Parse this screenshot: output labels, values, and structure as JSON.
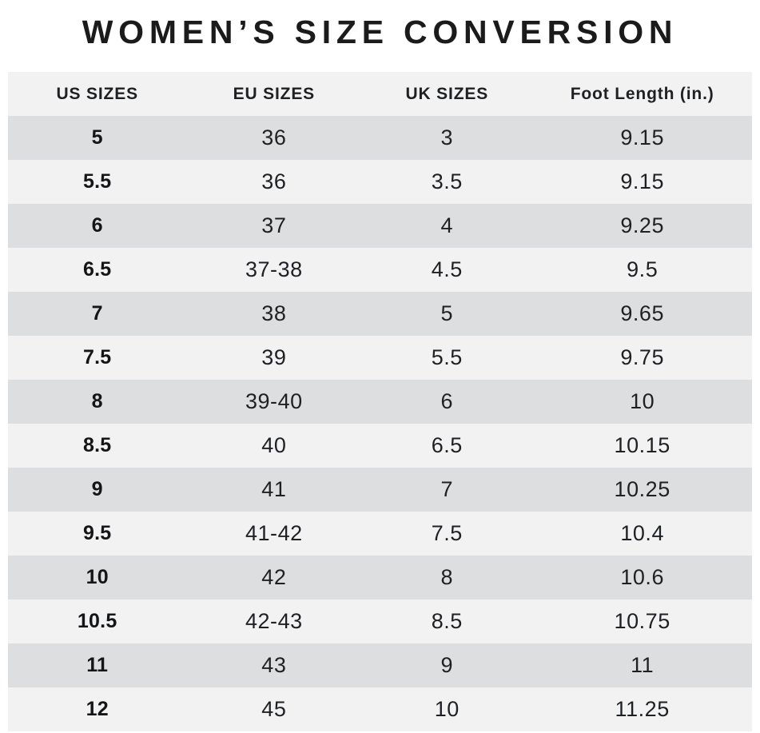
{
  "title": "WOMEN’S SIZE CONVERSION",
  "table": {
    "headers": [
      "US SIZES",
      "EU SIZES",
      "UK SIZES",
      "Foot Length (in.)"
    ],
    "rows": [
      {
        "us": "5",
        "eu": "36",
        "uk": "3",
        "foot": "9.15"
      },
      {
        "us": "5.5",
        "eu": "36",
        "uk": "3.5",
        "foot": "9.15"
      },
      {
        "us": "6",
        "eu": "37",
        "uk": "4",
        "foot": "9.25"
      },
      {
        "us": "6.5",
        "eu": "37-38",
        "uk": "4.5",
        "foot": "9.5"
      },
      {
        "us": "7",
        "eu": "38",
        "uk": "5",
        "foot": "9.65"
      },
      {
        "us": "7.5",
        "eu": "39",
        "uk": "5.5",
        "foot": "9.75"
      },
      {
        "us": "8",
        "eu": "39-40",
        "uk": "6",
        "foot": "10"
      },
      {
        "us": "8.5",
        "eu": "40",
        "uk": "6.5",
        "foot": "10.15"
      },
      {
        "us": "9",
        "eu": "41",
        "uk": "7",
        "foot": "10.25"
      },
      {
        "us": "9.5",
        "eu": "41-42",
        "uk": "7.5",
        "foot": "10.4"
      },
      {
        "us": "10",
        "eu": "42",
        "uk": "8",
        "foot": "10.6"
      },
      {
        "us": "10.5",
        "eu": "42-43",
        "uk": "8.5",
        "foot": "10.75"
      },
      {
        "us": "11",
        "eu": "43",
        "uk": "9",
        "foot": "11"
      },
      {
        "us": "12",
        "eu": "45",
        "uk": "10",
        "foot": "11.25"
      }
    ]
  },
  "colors": {
    "background": "#ffffff",
    "row_dark": "#dcdee0",
    "row_light": "#f2f2f3",
    "header_bg": "#f2f2f3",
    "text": "#1f2023",
    "title_text": "#1b1b1b"
  },
  "chart_data": {
    "type": "table",
    "title": "WOMEN’S SIZE CONVERSION",
    "columns": [
      "US SIZES",
      "EU SIZES",
      "UK SIZES",
      "Foot Length (in.)"
    ],
    "rows": [
      [
        "5",
        "36",
        "3",
        "9.15"
      ],
      [
        "5.5",
        "36",
        "3.5",
        "9.15"
      ],
      [
        "6",
        "37",
        "4",
        "9.25"
      ],
      [
        "6.5",
        "37-38",
        "4.5",
        "9.5"
      ],
      [
        "7",
        "38",
        "5",
        "9.65"
      ],
      [
        "7.5",
        "39",
        "5.5",
        "9.75"
      ],
      [
        "8",
        "39-40",
        "6",
        "10"
      ],
      [
        "8.5",
        "40",
        "6.5",
        "10.15"
      ],
      [
        "9",
        "41",
        "7",
        "10.25"
      ],
      [
        "9.5",
        "41-42",
        "7.5",
        "10.4"
      ],
      [
        "10",
        "42",
        "8",
        "10.6"
      ],
      [
        "10.5",
        "42-43",
        "8.5",
        "10.75"
      ],
      [
        "11",
        "43",
        "9",
        "11"
      ],
      [
        "12",
        "45",
        "10",
        "11.25"
      ]
    ],
    "layout": {
      "striped": true,
      "stripe_colors": [
        "#dcdee0",
        "#f2f2f3"
      ],
      "alignment": "center"
    }
  }
}
